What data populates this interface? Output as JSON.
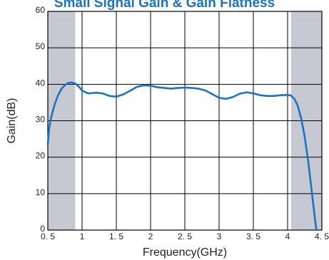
{
  "chart_data": {
    "type": "line",
    "title": "Small Signal Gain & Gain Flatness",
    "xlabel": "Frequency(GHz)",
    "ylabel": "Gain(dB)",
    "xlim": [
      0.5,
      4.5
    ],
    "ylim": [
      0,
      60
    ],
    "grid": true,
    "x_tick_labels": [
      "0. 5",
      "1",
      "1. 5",
      "2",
      "2. 5",
      "3",
      "3. 5",
      "4",
      "4. 5"
    ],
    "y_tick_labels": [
      "0",
      "10",
      "20",
      "30",
      "40",
      "50",
      "60"
    ],
    "shaded_ranges": [
      [
        0.5,
        0.9
      ],
      [
        4.05,
        4.5
      ]
    ],
    "series_color": "#1b73c2",
    "shade_color": "#c6c9d2",
    "series": [
      {
        "x": [
          0.5,
          0.52,
          0.55,
          0.6,
          0.65,
          0.7,
          0.75,
          0.8,
          0.85,
          0.9,
          0.95,
          1.0,
          1.05,
          1.1,
          1.2,
          1.3,
          1.4,
          1.5,
          1.6,
          1.7,
          1.8,
          1.9,
          2.0,
          2.1,
          2.2,
          2.3,
          2.4,
          2.5,
          2.6,
          2.7,
          2.8,
          2.9,
          3.0,
          3.1,
          3.2,
          3.3,
          3.4,
          3.5,
          3.6,
          3.7,
          3.8,
          3.9,
          4.0,
          4.05,
          4.1,
          4.15,
          4.2,
          4.25,
          4.3,
          4.35,
          4.4,
          4.42
        ],
        "y": [
          23.5,
          28,
          31,
          34.5,
          37,
          38.8,
          39.8,
          40.4,
          40.5,
          40.2,
          39.4,
          38.3,
          37.8,
          37.5,
          37.7,
          37.5,
          36.8,
          36.6,
          37.2,
          38.2,
          39.3,
          39.7,
          39.6,
          39.2,
          39.0,
          38.8,
          39.0,
          39.1,
          39.0,
          38.8,
          38.3,
          37.3,
          36.3,
          36.0,
          36.5,
          37.4,
          37.8,
          37.5,
          37.0,
          36.8,
          36.8,
          37.0,
          37.1,
          36.9,
          36.0,
          34.0,
          30.5,
          25.5,
          19.0,
          11.0,
          3.0,
          0.0
        ]
      }
    ]
  }
}
